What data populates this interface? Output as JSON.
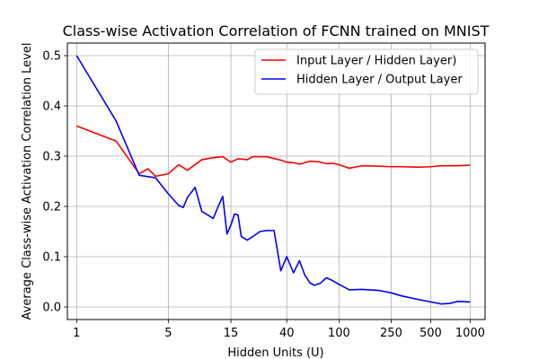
{
  "chart_data": {
    "type": "line",
    "title": "Class-wise Activation Correlation of FCNN trained on MNIST",
    "xlabel": "Hidden Units (U)",
    "ylabel": "Average Class-wise Activation Correlation Level",
    "x_scale": "log",
    "xlim": [
      0.85,
      1300
    ],
    "ylim": [
      -0.025,
      0.525
    ],
    "x_ticks": [
      {
        "value": 1,
        "label": "1"
      },
      {
        "value": 5,
        "label": "5"
      },
      {
        "value": 15,
        "label": "15"
      },
      {
        "value": 40,
        "label": "40"
      },
      {
        "value": 100,
        "label": "100"
      },
      {
        "value": 250,
        "label": "250"
      },
      {
        "value": 500,
        "label": "500"
      },
      {
        "value": 1000,
        "label": "1000"
      }
    ],
    "y_ticks": [
      {
        "value": 0.0,
        "label": "0.0"
      },
      {
        "value": 0.1,
        "label": "0.1"
      },
      {
        "value": 0.2,
        "label": "0.2"
      },
      {
        "value": 0.3,
        "label": "0.3"
      },
      {
        "value": 0.4,
        "label": "0.4"
      },
      {
        "value": 0.5,
        "label": "0.5"
      }
    ],
    "grid": true,
    "legend_position": "top-right",
    "series": [
      {
        "name": "Input Layer / Hidden Layer)",
        "color": "#ff0000",
        "points": [
          [
            1,
            0.36
          ],
          [
            2,
            0.33
          ],
          [
            3,
            0.265
          ],
          [
            3.5,
            0.275
          ],
          [
            4,
            0.26
          ],
          [
            5,
            0.265
          ],
          [
            6,
            0.283
          ],
          [
            7,
            0.272
          ],
          [
            9,
            0.293
          ],
          [
            11,
            0.297
          ],
          [
            13,
            0.299
          ],
          [
            15,
            0.288
          ],
          [
            17,
            0.295
          ],
          [
            20,
            0.293
          ],
          [
            22,
            0.299
          ],
          [
            28,
            0.299
          ],
          [
            35,
            0.293
          ],
          [
            40,
            0.288
          ],
          [
            45,
            0.287
          ],
          [
            50,
            0.284
          ],
          [
            55,
            0.287
          ],
          [
            60,
            0.29
          ],
          [
            70,
            0.289
          ],
          [
            80,
            0.285
          ],
          [
            90,
            0.286
          ],
          [
            100,
            0.283
          ],
          [
            120,
            0.276
          ],
          [
            150,
            0.281
          ],
          [
            200,
            0.28
          ],
          [
            250,
            0.279
          ],
          [
            300,
            0.279
          ],
          [
            400,
            0.278
          ],
          [
            500,
            0.279
          ],
          [
            600,
            0.281
          ],
          [
            800,
            0.281
          ],
          [
            1000,
            0.282
          ]
        ]
      },
      {
        "name": "Hidden Layer / Output Layer",
        "color": "#0000ff",
        "points": [
          [
            1,
            0.5
          ],
          [
            2,
            0.37
          ],
          [
            3,
            0.262
          ],
          [
            4,
            0.257
          ],
          [
            5,
            0.225
          ],
          [
            6,
            0.202
          ],
          [
            6.5,
            0.198
          ],
          [
            7,
            0.218
          ],
          [
            8,
            0.238
          ],
          [
            9,
            0.19
          ],
          [
            10,
            0.183
          ],
          [
            11,
            0.176
          ],
          [
            12,
            0.2
          ],
          [
            13,
            0.22
          ],
          [
            14,
            0.145
          ],
          [
            15,
            0.163
          ],
          [
            16,
            0.185
          ],
          [
            17,
            0.183
          ],
          [
            18,
            0.14
          ],
          [
            20,
            0.133
          ],
          [
            22,
            0.14
          ],
          [
            25,
            0.15
          ],
          [
            28,
            0.152
          ],
          [
            32,
            0.152
          ],
          [
            36,
            0.072
          ],
          [
            40,
            0.1
          ],
          [
            45,
            0.068
          ],
          [
            50,
            0.092
          ],
          [
            55,
            0.063
          ],
          [
            60,
            0.048
          ],
          [
            65,
            0.043
          ],
          [
            72,
            0.047
          ],
          [
            80,
            0.058
          ],
          [
            90,
            0.052
          ],
          [
            100,
            0.045
          ],
          [
            120,
            0.034
          ],
          [
            150,
            0.035
          ],
          [
            200,
            0.033
          ],
          [
            250,
            0.028
          ],
          [
            300,
            0.022
          ],
          [
            400,
            0.015
          ],
          [
            500,
            0.01
          ],
          [
            600,
            0.006
          ],
          [
            700,
            0.007
          ],
          [
            800,
            0.011
          ],
          [
            1000,
            0.01
          ]
        ]
      }
    ]
  }
}
